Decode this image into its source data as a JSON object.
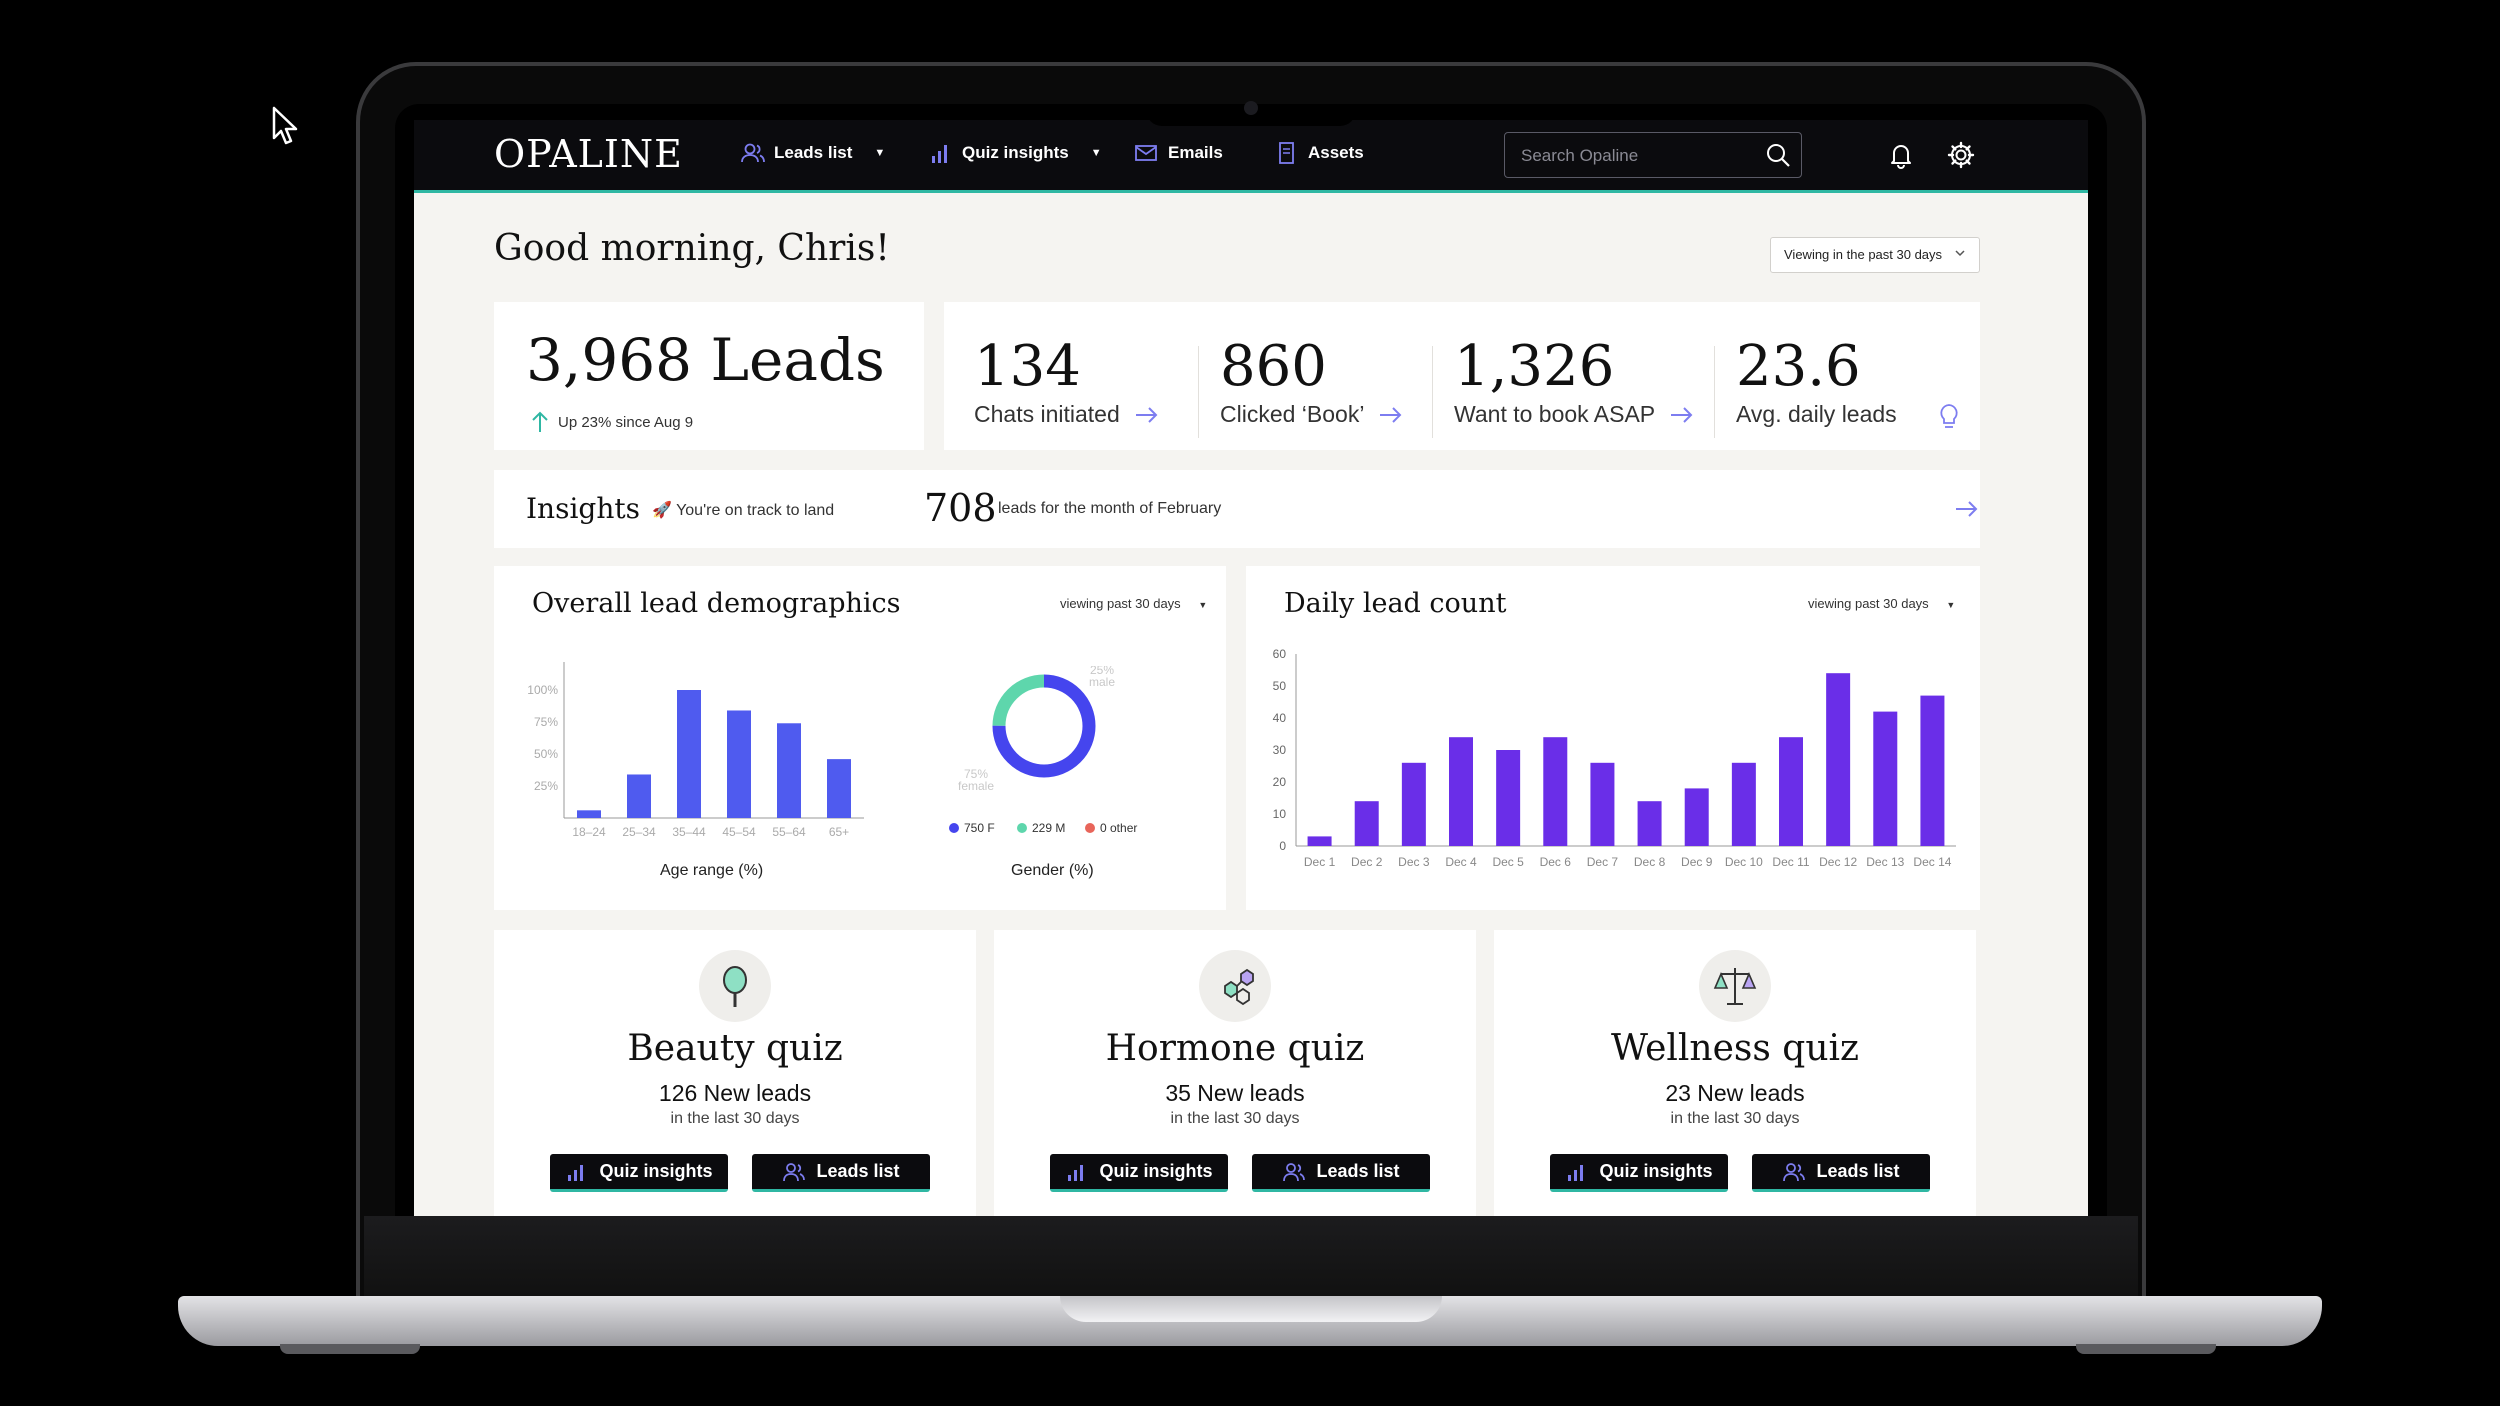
{
  "nav": {
    "logo": "OPALINE",
    "leads_list": "Leads list",
    "quiz_insights": "Quiz insights",
    "emails": "Emails",
    "assets": "Assets",
    "search_placeholder": "Search Opaline"
  },
  "greeting": "Good morning, Chris!",
  "range_select": "Viewing in the past 30 days",
  "summary": {
    "leads": "3,968 Leads",
    "trend": "Up 23% since Aug 9",
    "stats": [
      {
        "value": "134",
        "label": "Chats initiated"
      },
      {
        "value": "860",
        "label": "Clicked ‘Book’"
      },
      {
        "value": "1,326",
        "label": "Want to book ASAP"
      },
      {
        "value": "23.6",
        "label": "Avg. daily leads"
      }
    ]
  },
  "insights": {
    "title": "Insights",
    "prefix": "🚀 You're on track to land",
    "number": "708",
    "suffix": "leads for the month of February"
  },
  "demographics": {
    "title": "Overall lead demographics",
    "range": "viewing past 30 days",
    "age_label": "Age range (%)",
    "gender_label": "Gender (%)"
  },
  "daily": {
    "title": "Daily lead count",
    "range": "viewing past 30 days"
  },
  "chart_data": [
    {
      "type": "bar",
      "title": "",
      "xlabel": "Age range (%)",
      "ylabel": "",
      "categories": [
        "18–24",
        "25–34",
        "35–44",
        "45–54",
        "55–64",
        "65+"
      ],
      "values": [
        6,
        34,
        100,
        84,
        74,
        46
      ],
      "yticks": [
        "25%",
        "50%",
        "75%",
        "100%"
      ],
      "ylim": [
        0,
        125
      ],
      "color": "#4f5bef",
      "grid": false
    },
    {
      "type": "pie",
      "title": "",
      "xlabel": "Gender (%)",
      "slices": [
        {
          "label": "750 F",
          "value": 75,
          "color": "#4545ee"
        },
        {
          "label": "229 M",
          "value": 25,
          "color": "#5ed6ac"
        },
        {
          "label": "0 other",
          "value": 0,
          "color": "#e8655a"
        }
      ],
      "annotations": [
        "25%",
        "male",
        "75%",
        "female"
      ]
    },
    {
      "type": "bar",
      "title": "",
      "xlabel": "",
      "ylabel": "",
      "categories": [
        "Dec 1",
        "Dec 2",
        "Dec 3",
        "Dec 4",
        "Dec 5",
        "Dec 6",
        "Dec 7",
        "Dec 8",
        "Dec 9",
        "Dec 10",
        "Dec 11",
        "Dec 12",
        "Dec 13",
        "Dec 14"
      ],
      "values": [
        3,
        14,
        26,
        34,
        30,
        34,
        26,
        14,
        18,
        26,
        34,
        54,
        42,
        47
      ],
      "yticks": [
        0,
        10,
        20,
        30,
        40,
        50,
        60
      ],
      "ylim": [
        0,
        60
      ],
      "color": "#6a2ee8",
      "grid": false
    }
  ],
  "quizzes": [
    {
      "title": "Beauty quiz",
      "leads": "126 New leads",
      "sub": "in the last 30 days",
      "btn1": "Quiz insights",
      "btn2": "Leads list",
      "icon": "hand-mirror-icon"
    },
    {
      "title": "Hormone quiz",
      "leads": "35 New leads",
      "sub": "in the last 30 days",
      "btn1": "Quiz insights",
      "btn2": "Leads list",
      "icon": "molecule-icon"
    },
    {
      "title": "Wellness quiz",
      "leads": "23 New leads",
      "sub": "in the last 30 days",
      "btn1": "Quiz insights",
      "btn2": "Leads list",
      "icon": "balance-scale-icon"
    }
  ]
}
